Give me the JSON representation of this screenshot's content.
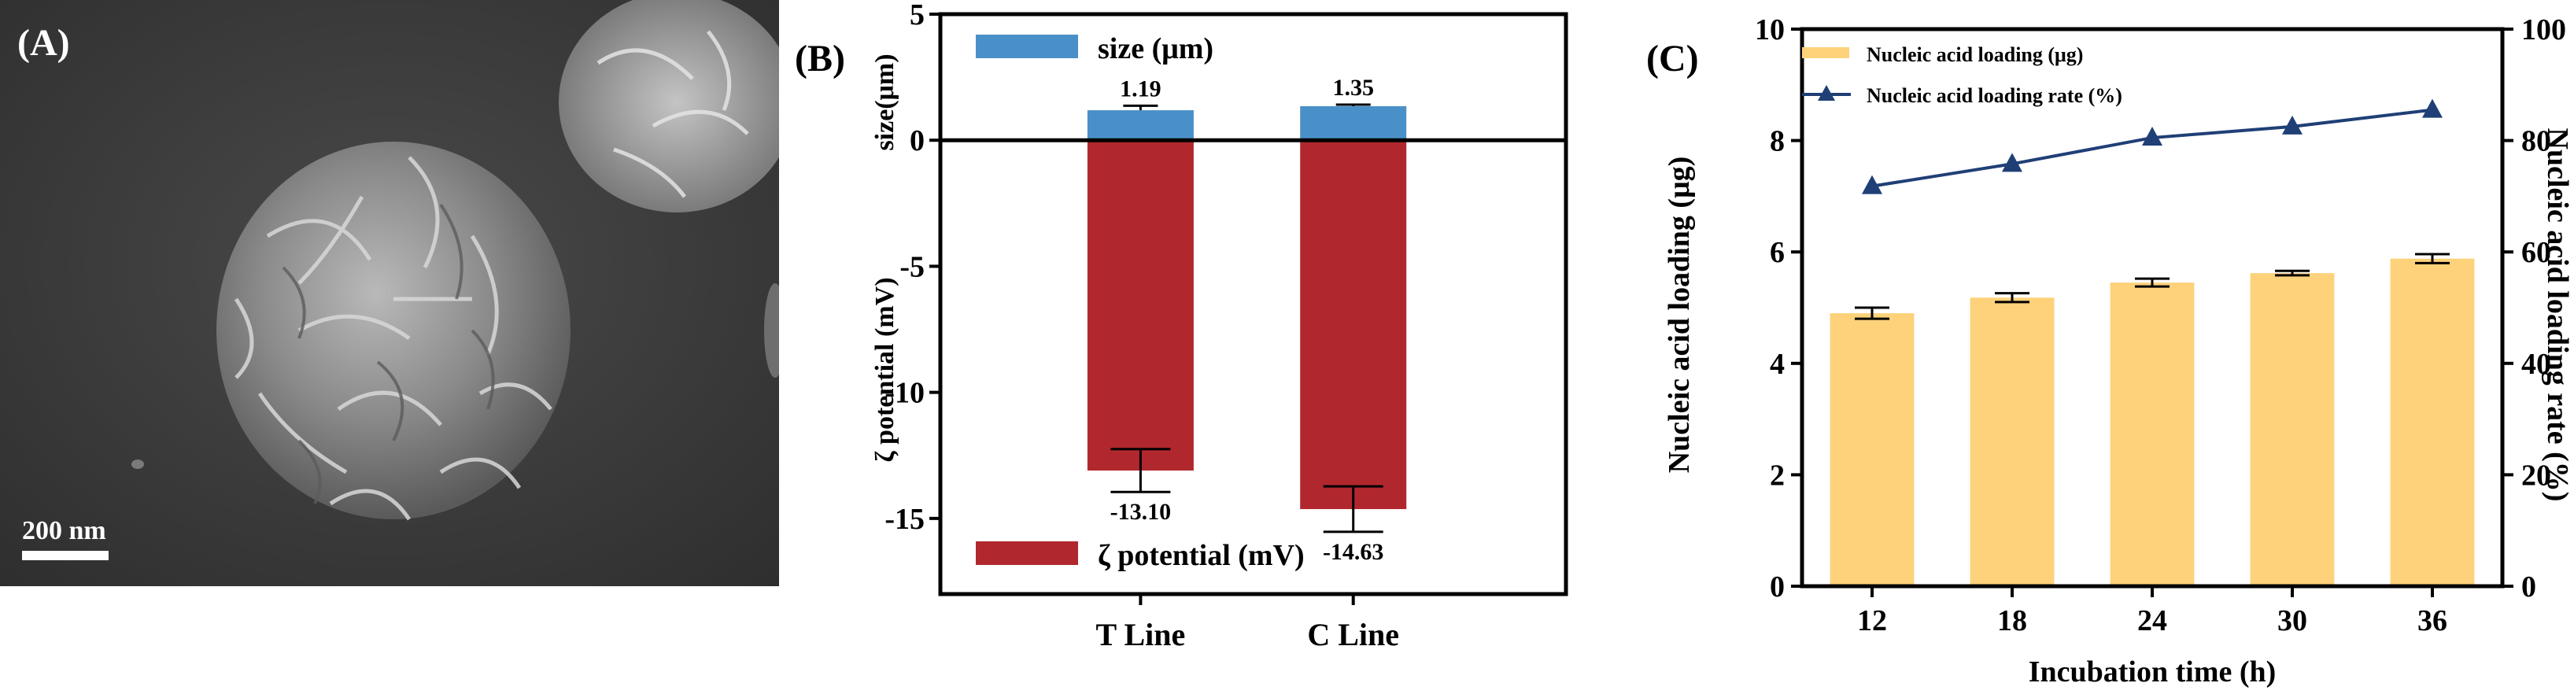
{
  "panel_a": {
    "label": "(A)",
    "scale_bar": "200 nm",
    "image_desc": "sem-micrograph"
  },
  "panel_b": {
    "label": "(B)",
    "chart_data": {
      "type": "bar",
      "categories": [
        "T Line",
        "C Line"
      ],
      "series": [
        {
          "name": "size (μm)",
          "values": [
            1.19,
            1.35
          ],
          "errors": [
            0.18,
            0.06
          ],
          "labels": [
            "1.19",
            "1.35"
          ],
          "color": "#4a90c8"
        },
        {
          "name": "ζ potential (mV)",
          "values": [
            -13.1,
            -14.63
          ],
          "errors": [
            0.85,
            0.9
          ],
          "labels": [
            "-13.10",
            "-14.63"
          ],
          "color": "#b0282e"
        }
      ],
      "ylabel_top": "size(μm)",
      "ylabel_bottom": "ζ potential (mV)",
      "ylim": [
        -18,
        5
      ],
      "yticks": [
        5,
        0,
        -5,
        -10,
        -15
      ],
      "ytick_labels": [
        "5",
        "0",
        "-5",
        "-10",
        "-15"
      ]
    }
  },
  "panel_c": {
    "label": "(C)",
    "chart_data": {
      "type": "bar",
      "categories": [
        "12",
        "18",
        "24",
        "30",
        "36"
      ],
      "xlabel": "Incubation time (h)",
      "ylabel": "Nucleic acid loading (μg)",
      "ylabel_right": "Nucleic acid loading rate (%)",
      "ylim": [
        0,
        10
      ],
      "ylim_right": [
        0,
        100
      ],
      "yticks": [
        "0",
        "2",
        "4",
        "6",
        "8",
        "10"
      ],
      "yticks_right": [
        "0",
        "20",
        "40",
        "60",
        "80",
        "100"
      ],
      "series": [
        {
          "name": "Nucleic acid loading (μg)",
          "type": "bar",
          "axis": "left",
          "values": [
            4.9,
            5.18,
            5.45,
            5.62,
            5.88
          ],
          "errors": [
            0.1,
            0.08,
            0.07,
            0.04,
            0.08
          ],
          "color": "#fdd27a"
        },
        {
          "name": "Nucleic acid loading rate (%)",
          "type": "line",
          "axis": "right",
          "values": [
            71.8,
            75.8,
            80.5,
            82.5,
            85.5
          ],
          "color": "#1f3f76"
        }
      ],
      "legend": "top-left"
    }
  }
}
